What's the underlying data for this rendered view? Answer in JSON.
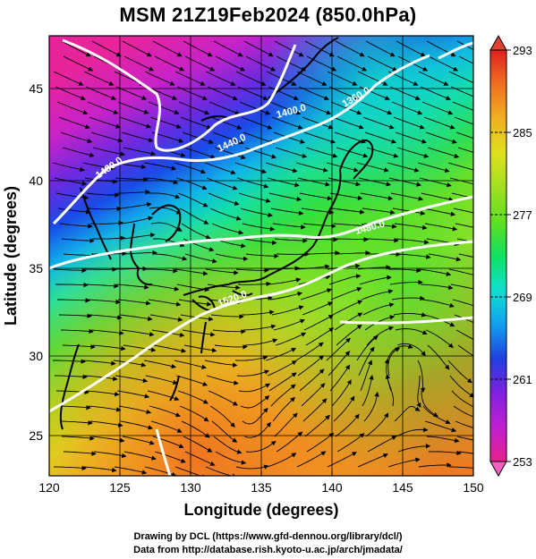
{
  "title": "MSM 21Z19Feb2024 (850.0hPa)",
  "x_axis": {
    "label": "Longitude (degrees)",
    "ticks": [
      "120",
      "125",
      "130",
      "135",
      "140",
      "145",
      "150"
    ],
    "range": [
      120,
      150
    ]
  },
  "y_axis": {
    "label": "Latitude  (degrees)",
    "ticks": [
      "25",
      "30",
      "35",
      "40",
      "45"
    ],
    "range": [
      22.4,
      47.6
    ]
  },
  "colorbar": {
    "ticks": [
      "293",
      "285",
      "277",
      "269",
      "261",
      "253"
    ],
    "range": [
      253,
      293
    ],
    "colors": [
      "#e8208c",
      "#c020d0",
      "#8020e0",
      "#2040e0",
      "#10a0f0",
      "#10e0d0",
      "#10e060",
      "#60e020",
      "#a0e020",
      "#e0e020",
      "#f0b020",
      "#f07020",
      "#e02020"
    ]
  },
  "contours": {
    "labels": [
      "1400.0",
      "1440.0",
      "1480.0",
      "1360.0",
      "1480.0",
      "1520.0"
    ],
    "color": "#ffffff"
  },
  "footer": {
    "line1": "Drawing by DCL (https://www.gfd-dennou.org/library/dcl/)",
    "line2": "Data from http://database.rish.kyoto-u.ac.jp/arch/jmadata/"
  }
}
